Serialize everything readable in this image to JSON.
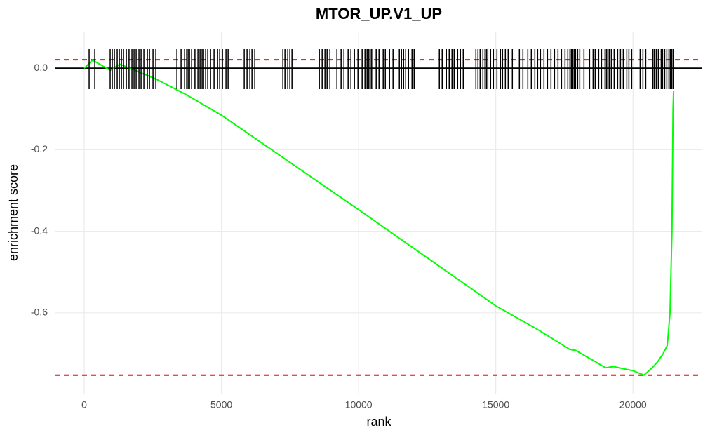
{
  "chart_data": {
    "type": "line",
    "title": "MTOR_UP.V1_UP",
    "x_label": "rank",
    "y_label": "enrichment score",
    "x": [
      0,
      300,
      950,
      1300,
      2600,
      3700,
      5000,
      10000,
      15000,
      16500,
      17700,
      17900,
      18500,
      19000,
      19300,
      19700,
      20000,
      20400,
      20700,
      20900,
      21100,
      21250,
      21350,
      21420,
      21460,
      21480
    ],
    "series": [
      {
        "color": "#00ff00",
        "values": [
          0,
          0.02,
          -0.005,
          0.01,
          -0.026,
          -0.064,
          -0.115,
          -0.347,
          -0.583,
          -0.64,
          -0.69,
          -0.692,
          -0.715,
          -0.735,
          -0.732,
          -0.738,
          -0.742,
          -0.753,
          -0.735,
          -0.72,
          -0.7,
          -0.68,
          -0.6,
          -0.4,
          -0.1,
          -0.055
        ]
      }
    ],
    "hits": [
      179,
      384,
      946,
      1023,
      1100,
      1202,
      1279,
      1356,
      1432,
      1535,
      1612,
      1663,
      1739,
      1816,
      1893,
      1995,
      2072,
      2174,
      2302,
      2379,
      2507,
      2609,
      3377,
      3530,
      3658,
      3735,
      3786,
      3837,
      3914,
      4016,
      4067,
      4144,
      4221,
      4297,
      4348,
      4425,
      4502,
      4604,
      4732,
      4860,
      4937,
      5039,
      5167,
      5244,
      5832,
      5934,
      6037,
      6114,
      6216,
      7239,
      7316,
      7418,
      7495,
      7572,
      8569,
      8672,
      8774,
      8851,
      8953,
      9209,
      9362,
      9465,
      9618,
      9720,
      9848,
      9976,
      10129,
      10232,
      10309,
      10360,
      10411,
      10462,
      10513,
      10641,
      10744,
      10897,
      10974,
      11127,
      11255,
      11485,
      11562,
      11639,
      11716,
      11818,
      11946,
      12023,
      12943,
      13046,
      13199,
      13302,
      13404,
      13481,
      13609,
      13711,
      13814,
      14274,
      14351,
      14428,
      14530,
      14607,
      14658,
      14709,
      14811,
      14914,
      15042,
      15170,
      15246,
      15349,
      15451,
      15604,
      15860,
      15988,
      16167,
      16295,
      16423,
      16525,
      16627,
      16755,
      16883,
      17011,
      17139,
      17267,
      17395,
      17523,
      17625,
      17702,
      17753,
      17804,
      17855,
      17906,
      17983,
      18060,
      18213,
      18418,
      18546,
      18622,
      18750,
      18853,
      18981,
      19032,
      19083,
      19134,
      19211,
      19313,
      19441,
      19544,
      19646,
      19774,
      19851,
      19953,
      20260,
      20362,
      20465,
      20720,
      20771,
      20848,
      20925,
      21027,
      21078,
      21155,
      21232,
      21309,
      21360,
      21411,
      21462
    ],
    "hit_color": "#000000",
    "hlines": [
      {
        "value": 0.021,
        "color": "#ff0000",
        "dashed": true
      },
      {
        "value": -0.753,
        "color": "#ff0000",
        "dashed": true
      },
      {
        "value": 0,
        "color": "#000000",
        "dashed": false
      }
    ],
    "xlim": [
      -1075,
      22500
    ],
    "ylim": [
      -0.8,
      0.09
    ],
    "xticks": [
      0,
      5000,
      10000,
      15000,
      20000
    ],
    "yticks": [
      {
        "value": 0,
        "label": "0.0"
      },
      -0.2,
      -0.4,
      -0.6
    ],
    "grid": true
  }
}
